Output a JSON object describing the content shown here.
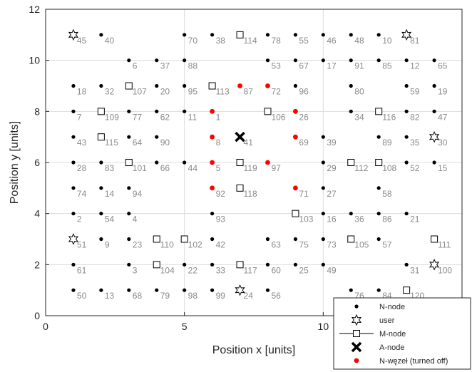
{
  "chart_data": {
    "type": "scatter",
    "xlabel": "Position x [units]",
    "ylabel": "Position y [units]",
    "xlim": [
      0,
      15
    ],
    "ylim": [
      0,
      12
    ],
    "xticks": [
      0,
      5,
      10
    ],
    "yticks": [
      0,
      2,
      4,
      6,
      8,
      10,
      12
    ],
    "grid": true,
    "legend_position": "bottom-right",
    "colors": {
      "n_node": "#000000",
      "n_node_off": "#ff0000",
      "a_node": "#000000",
      "labels": "#8a8a8a",
      "grid": "#dcdcdc"
    },
    "legend": [
      {
        "key": "n_node",
        "label": "N-node"
      },
      {
        "key": "user",
        "label": "user"
      },
      {
        "key": "m_node",
        "label": "M-node"
      },
      {
        "key": "a_node",
        "label": "A-node"
      },
      {
        "key": "n_node_off",
        "label": "N-węzeł (turned off)"
      }
    ],
    "series": [
      {
        "key": "n_node",
        "points": [
          {
            "id": "40",
            "x": 2,
            "y": 11
          },
          {
            "id": "70",
            "x": 5,
            "y": 11
          },
          {
            "id": "38",
            "x": 6,
            "y": 11
          },
          {
            "id": "78",
            "x": 8,
            "y": 11
          },
          {
            "id": "55",
            "x": 9,
            "y": 11
          },
          {
            "id": "46",
            "x": 10,
            "y": 11
          },
          {
            "id": "48",
            "x": 11,
            "y": 11
          },
          {
            "id": "10",
            "x": 12,
            "y": 11
          },
          {
            "id": "6",
            "x": 3,
            "y": 10
          },
          {
            "id": "37",
            "x": 4,
            "y": 10
          },
          {
            "id": "88",
            "x": 5,
            "y": 10
          },
          {
            "id": "53",
            "x": 8,
            "y": 10
          },
          {
            "id": "67",
            "x": 9,
            "y": 10
          },
          {
            "id": "17",
            "x": 10,
            "y": 10
          },
          {
            "id": "91",
            "x": 11,
            "y": 10
          },
          {
            "id": "85",
            "x": 12,
            "y": 10
          },
          {
            "id": "12",
            "x": 13,
            "y": 10
          },
          {
            "id": "65",
            "x": 14,
            "y": 10
          },
          {
            "id": "18",
            "x": 1,
            "y": 9
          },
          {
            "id": "32",
            "x": 2,
            "y": 9
          },
          {
            "id": "20",
            "x": 4,
            "y": 9
          },
          {
            "id": "95",
            "x": 5,
            "y": 9
          },
          {
            "id": "96",
            "x": 9,
            "y": 9
          },
          {
            "id": "80",
            "x": 11,
            "y": 9
          },
          {
            "id": "59",
            "x": 13,
            "y": 9
          },
          {
            "id": "19",
            "x": 14,
            "y": 9
          },
          {
            "id": "7",
            "x": 1,
            "y": 8
          },
          {
            "id": "77",
            "x": 3,
            "y": 8
          },
          {
            "id": "62",
            "x": 4,
            "y": 8
          },
          {
            "id": "11",
            "x": 5,
            "y": 8
          },
          {
            "id": "34",
            "x": 11,
            "y": 8
          },
          {
            "id": "82",
            "x": 13,
            "y": 8
          },
          {
            "id": "47",
            "x": 14,
            "y": 8
          },
          {
            "id": "43",
            "x": 1,
            "y": 7
          },
          {
            "id": "64",
            "x": 3,
            "y": 7
          },
          {
            "id": "90",
            "x": 4,
            "y": 7
          },
          {
            "id": "39",
            "x": 10,
            "y": 7
          },
          {
            "id": "89",
            "x": 12,
            "y": 7
          },
          {
            "id": "35",
            "x": 13,
            "y": 7
          },
          {
            "id": "28",
            "x": 1,
            "y": 6
          },
          {
            "id": "83",
            "x": 2,
            "y": 6
          },
          {
            "id": "66",
            "x": 4,
            "y": 6
          },
          {
            "id": "44",
            "x": 5,
            "y": 6
          },
          {
            "id": "29",
            "x": 10,
            "y": 6
          },
          {
            "id": "52",
            "x": 13,
            "y": 6
          },
          {
            "id": "15",
            "x": 14,
            "y": 6
          },
          {
            "id": "74",
            "x": 1,
            "y": 5
          },
          {
            "id": "14",
            "x": 2,
            "y": 5
          },
          {
            "id": "94",
            "x": 3,
            "y": 5
          },
          {
            "id": "27",
            "x": 10,
            "y": 5
          },
          {
            "id": "58",
            "x": 12,
            "y": 5
          },
          {
            "id": "2",
            "x": 1,
            "y": 4
          },
          {
            "id": "54",
            "x": 2,
            "y": 4
          },
          {
            "id": "4",
            "x": 3,
            "y": 4
          },
          {
            "id": "93",
            "x": 6,
            "y": 4
          },
          {
            "id": "16",
            "x": 10,
            "y": 4
          },
          {
            "id": "36",
            "x": 11,
            "y": 4
          },
          {
            "id": "86",
            "x": 12,
            "y": 4
          },
          {
            "id": "21",
            "x": 13,
            "y": 4
          },
          {
            "id": "9",
            "x": 2,
            "y": 3
          },
          {
            "id": "23",
            "x": 3,
            "y": 3
          },
          {
            "id": "42",
            "x": 6,
            "y": 3
          },
          {
            "id": "63",
            "x": 8,
            "y": 3
          },
          {
            "id": "75",
            "x": 9,
            "y": 3
          },
          {
            "id": "73",
            "x": 10,
            "y": 3
          },
          {
            "id": "57",
            "x": 12,
            "y": 3
          },
          {
            "id": "61",
            "x": 1,
            "y": 2
          },
          {
            "id": "3",
            "x": 3,
            "y": 2
          },
          {
            "id": "22",
            "x": 5,
            "y": 2
          },
          {
            "id": "33",
            "x": 6,
            "y": 2
          },
          {
            "id": "60",
            "x": 8,
            "y": 2
          },
          {
            "id": "25",
            "x": 9,
            "y": 2
          },
          {
            "id": "49",
            "x": 10,
            "y": 2
          },
          {
            "id": "31",
            "x": 13,
            "y": 2
          },
          {
            "id": "50",
            "x": 1,
            "y": 1
          },
          {
            "id": "13",
            "x": 2,
            "y": 1
          },
          {
            "id": "68",
            "x": 3,
            "y": 1
          },
          {
            "id": "79",
            "x": 4,
            "y": 1
          },
          {
            "id": "98",
            "x": 5,
            "y": 1
          },
          {
            "id": "99",
            "x": 6,
            "y": 1
          },
          {
            "id": "56",
            "x": 8,
            "y": 1
          },
          {
            "id": "76",
            "x": 11,
            "y": 1
          },
          {
            "id": "84",
            "x": 12,
            "y": 1
          }
        ]
      },
      {
        "key": "user",
        "points": [
          {
            "id": "45",
            "x": 1,
            "y": 11
          },
          {
            "id": "81",
            "x": 13,
            "y": 11
          },
          {
            "id": "30",
            "x": 14,
            "y": 7
          },
          {
            "id": "51",
            "x": 1,
            "y": 3
          },
          {
            "id": "100",
            "x": 14,
            "y": 2
          },
          {
            "id": "24",
            "x": 7,
            "y": 1
          }
        ]
      },
      {
        "key": "m_node",
        "points": [
          {
            "id": "114",
            "x": 7,
            "y": 11
          },
          {
            "id": "107",
            "x": 3,
            "y": 9
          },
          {
            "id": "113",
            "x": 6,
            "y": 9
          },
          {
            "id": "109",
            "x": 2,
            "y": 8
          },
          {
            "id": "106",
            "x": 8,
            "y": 8
          },
          {
            "id": "116",
            "x": 12,
            "y": 8
          },
          {
            "id": "115",
            "x": 2,
            "y": 7
          },
          {
            "id": "101",
            "x": 3,
            "y": 6
          },
          {
            "id": "119",
            "x": 7,
            "y": 6
          },
          {
            "id": "112",
            "x": 11,
            "y": 6
          },
          {
            "id": "108",
            "x": 12,
            "y": 6
          },
          {
            "id": "118",
            "x": 7,
            "y": 5
          },
          {
            "id": "103",
            "x": 9,
            "y": 4
          },
          {
            "id": "110",
            "x": 4,
            "y": 3
          },
          {
            "id": "102",
            "x": 5,
            "y": 3
          },
          {
            "id": "105",
            "x": 11,
            "y": 3
          },
          {
            "id": "111",
            "x": 14,
            "y": 3
          },
          {
            "id": "104",
            "x": 4,
            "y": 2
          },
          {
            "id": "117",
            "x": 7,
            "y": 2
          },
          {
            "id": "120",
            "x": 13,
            "y": 1
          }
        ]
      },
      {
        "key": "a_node",
        "points": [
          {
            "id": "41",
            "x": 7,
            "y": 7
          }
        ]
      },
      {
        "key": "n_node_off",
        "points": [
          {
            "id": "87",
            "x": 7,
            "y": 9
          },
          {
            "id": "72",
            "x": 8,
            "y": 9
          },
          {
            "id": "1",
            "x": 6,
            "y": 8
          },
          {
            "id": "26",
            "x": 9,
            "y": 8
          },
          {
            "id": "8",
            "x": 6,
            "y": 7
          },
          {
            "id": "69",
            "x": 9,
            "y": 7
          },
          {
            "id": "5",
            "x": 6,
            "y": 6
          },
          {
            "id": "97",
            "x": 8,
            "y": 6
          },
          {
            "id": "92",
            "x": 6,
            "y": 5
          },
          {
            "id": "71",
            "x": 9,
            "y": 5
          }
        ]
      }
    ]
  }
}
